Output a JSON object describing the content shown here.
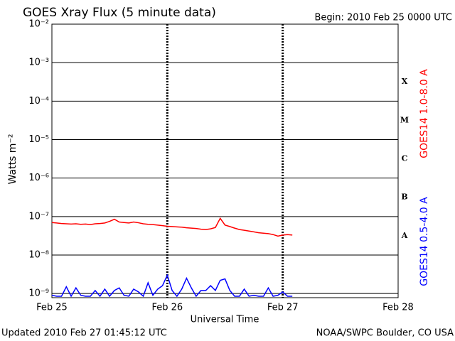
{
  "chart_data": {
    "type": "line",
    "title": "GOES Xray Flux (5 minute data)",
    "subtitle": "Begin:  2010 Feb 25 0000 UTC",
    "xlabel": "Universal Time",
    "ylabel": "Watts m⁻²",
    "footer_left": "Updated 2010 Feb 27 01:45:12 UTC",
    "footer_right": "NOAA/SWPC Boulder, CO USA",
    "flare_classes": [
      "X",
      "M",
      "C",
      "B",
      "A"
    ],
    "log_scale": true,
    "grid": true,
    "xlim": [
      0,
      72
    ],
    "xticks": [
      {
        "value": 0,
        "label": "Feb 25"
      },
      {
        "value": 24,
        "label": "Feb 26"
      },
      {
        "value": 48,
        "label": "Feb 27"
      },
      {
        "value": 72,
        "label": "Feb 28"
      }
    ],
    "ylim": [
      7.8e-10,
      0.01
    ],
    "yticks": [
      {
        "value": 1e-09,
        "label": "10⁻⁹"
      },
      {
        "value": 1e-08,
        "label": "10⁻⁸"
      },
      {
        "value": 1e-07,
        "label": "10⁻⁷"
      },
      {
        "value": 1e-06,
        "label": "10⁻⁶"
      },
      {
        "value": 1e-05,
        "label": "10⁻⁵"
      },
      {
        "value": 0.0001,
        "label": "10⁻⁴"
      },
      {
        "value": 0.001,
        "label": "10⁻³"
      },
      {
        "value": 0.01,
        "label": "10⁻²"
      }
    ],
    "x": [
      0,
      1,
      2,
      3,
      4,
      5,
      6,
      7,
      8,
      9,
      10,
      11,
      12,
      13,
      14,
      15,
      16,
      17,
      18,
      19,
      20,
      21,
      22,
      23,
      24,
      25,
      26,
      27,
      28,
      29,
      30,
      31,
      32,
      33,
      34,
      35,
      36,
      37,
      38,
      39,
      40,
      41,
      42,
      43,
      44,
      45,
      46,
      47,
      48,
      49,
      50
    ],
    "series": [
      {
        "name": "GOES14 1.0-8.0 A",
        "color": "#ff0000",
        "values": [
          7e-08,
          6.8e-08,
          6.6e-08,
          6.5e-08,
          6.4e-08,
          6.5e-08,
          6.3e-08,
          6.4e-08,
          6.2e-08,
          6.5e-08,
          6.6e-08,
          6.8e-08,
          7.5e-08,
          8.5e-08,
          7.2e-08,
          7e-08,
          6.8e-08,
          7.2e-08,
          6.9e-08,
          6.5e-08,
          6.3e-08,
          6.2e-08,
          6e-08,
          5.8e-08,
          5.6e-08,
          5.5e-08,
          5.4e-08,
          5.3e-08,
          5.1e-08,
          5e-08,
          4.9e-08,
          4.7e-08,
          4.6e-08,
          4.8e-08,
          5.2e-08,
          9e-08,
          6e-08,
          5.5e-08,
          5e-08,
          4.6e-08,
          4.4e-08,
          4.2e-08,
          4e-08,
          3.8e-08,
          3.7e-08,
          3.6e-08,
          3.4e-08,
          3.1e-08,
          3.3e-08,
          3.4e-08,
          3.3e-08
        ]
      },
      {
        "name": "GOES14 0.5-4.0 A",
        "color": "#0000ff",
        "values": [
          9e-10,
          8.5e-10,
          8.5e-10,
          1.5e-09,
          8.5e-10,
          1.4e-09,
          9e-10,
          8.5e-10,
          8.5e-10,
          1.2e-09,
          8.5e-10,
          1.3e-09,
          8.5e-10,
          1.2e-09,
          1.4e-09,
          9e-10,
          8.5e-10,
          1.3e-09,
          1.1e-09,
          8.5e-10,
          1.9e-09,
          9e-10,
          1.3e-09,
          1.6e-09,
          3e-09,
          1.2e-09,
          8.5e-10,
          1.3e-09,
          2.5e-09,
          1.4e-09,
          8.5e-10,
          1.2e-09,
          1.2e-09,
          1.6e-09,
          1.2e-09,
          2.2e-09,
          2.4e-09,
          1.2e-09,
          8.5e-10,
          8.5e-10,
          1.3e-09,
          8.5e-10,
          9e-10,
          8.5e-10,
          8.5e-10,
          1.4e-09,
          8.5e-10,
          9e-10,
          1.1e-09,
          8.5e-10,
          8.5e-10
        ]
      }
    ]
  }
}
